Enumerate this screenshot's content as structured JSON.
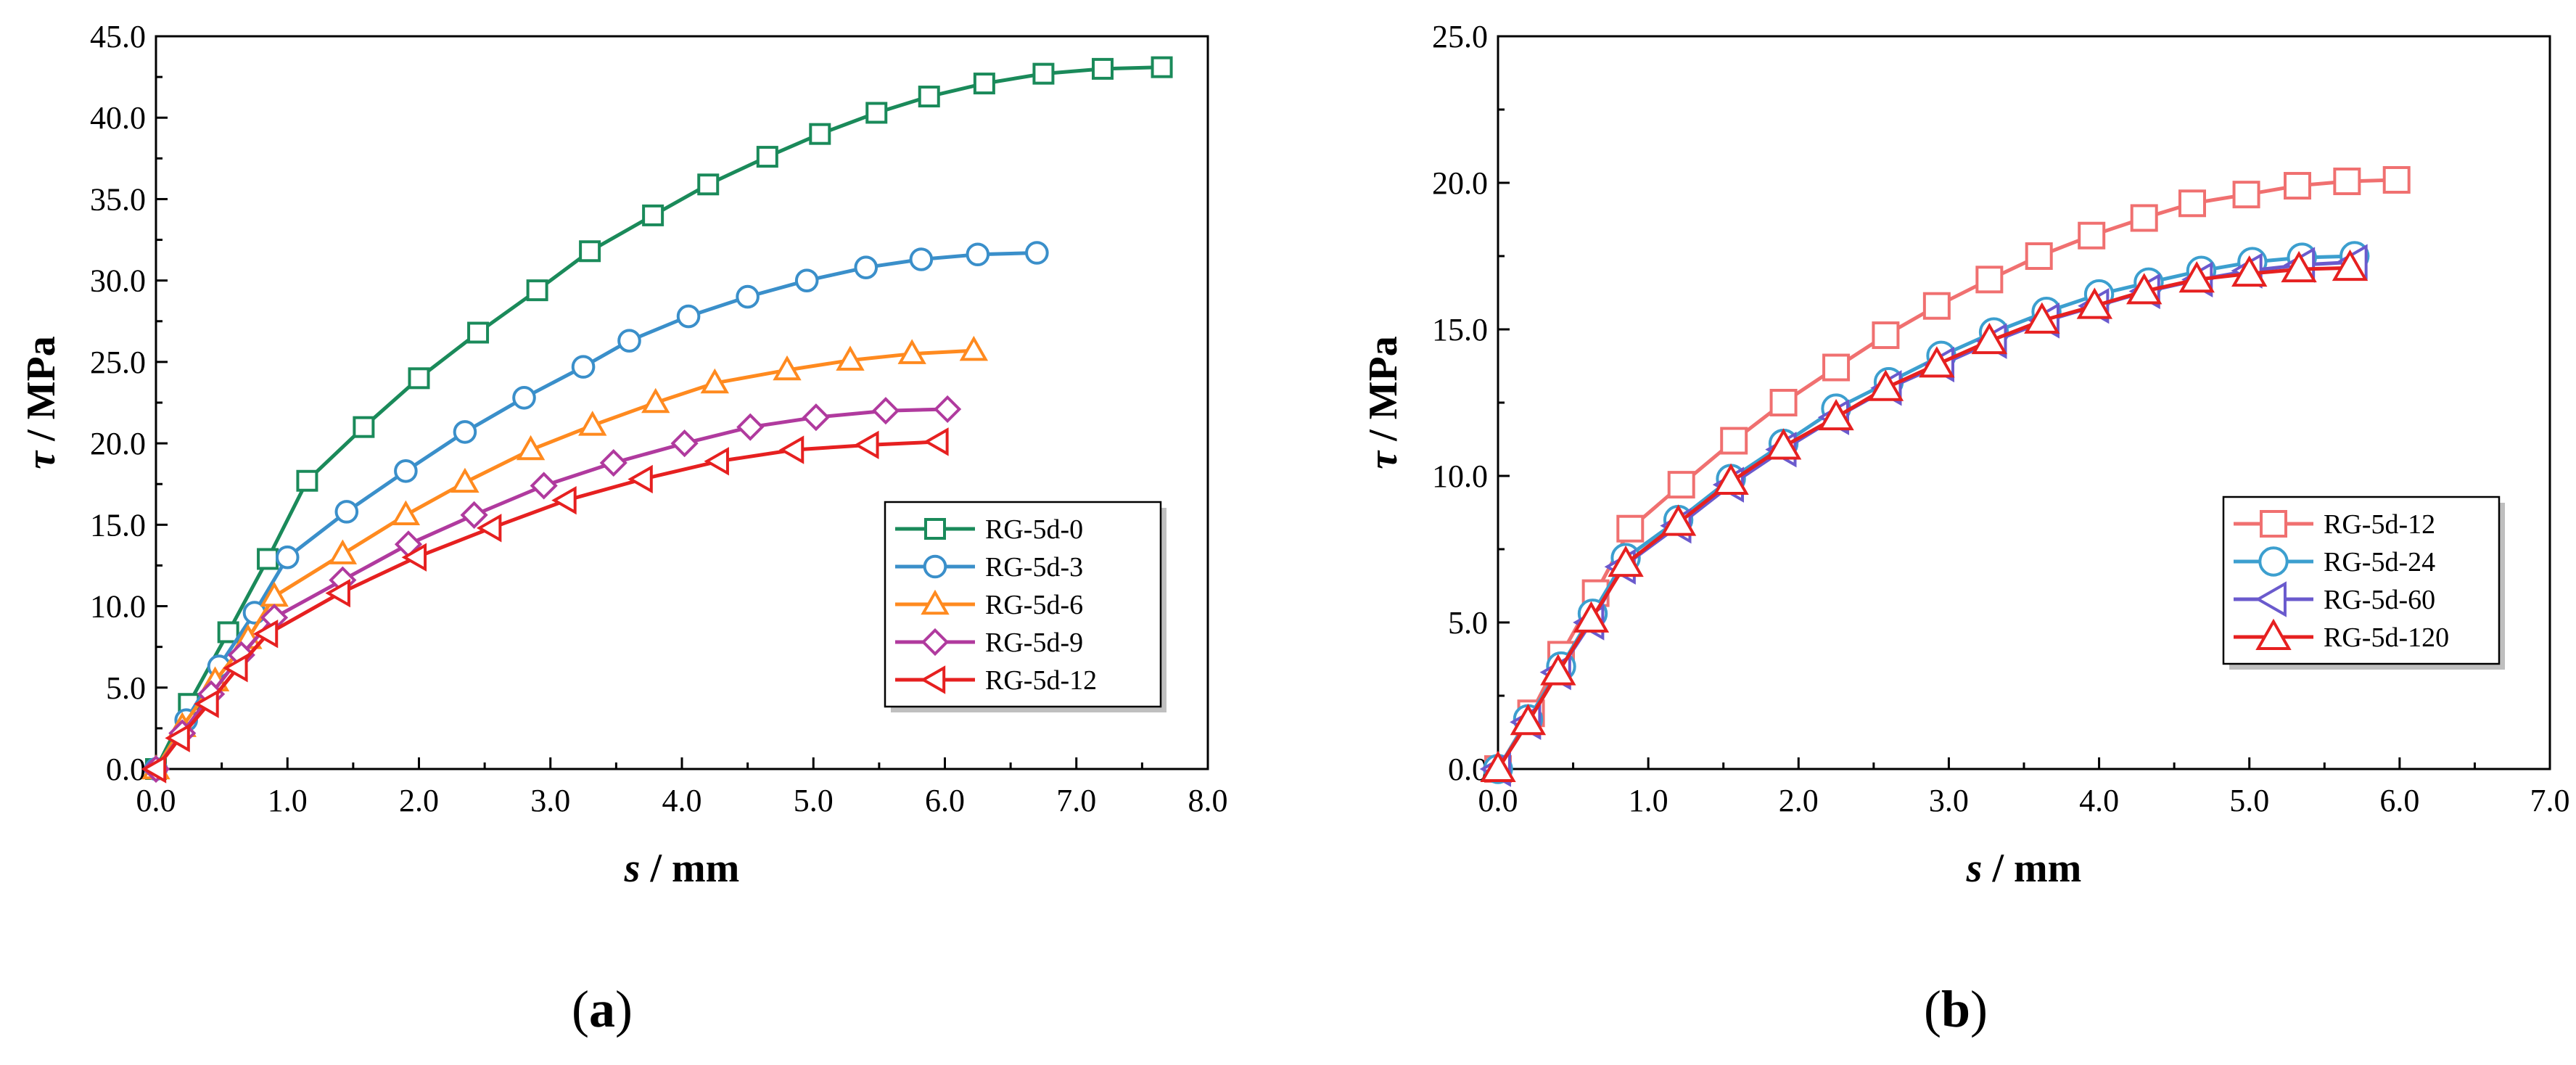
{
  "chart_data": [
    {
      "type": "line",
      "panel_label": "(a)",
      "xlabel": {
        "sym": "s",
        "unit": " / mm"
      },
      "ylabel": {
        "sym": "τ",
        "unit": " / MPa"
      },
      "xlim": [
        0,
        8
      ],
      "ylim": [
        0,
        45
      ],
      "xticks": [
        "0.0",
        "1.0",
        "2.0",
        "3.0",
        "4.0",
        "5.0",
        "6.0",
        "7.0",
        "8.0"
      ],
      "yticks": [
        "0.0",
        "5.0",
        "10.0",
        "15.0",
        "20.0",
        "25.0",
        "30.0",
        "35.0",
        "40.0",
        "45.0"
      ],
      "legend_position": "bottom-right",
      "series": [
        {
          "name": "RG-5d-0",
          "color": "#1a8a5a",
          "marker": "square",
          "x": [
            0,
            0.25,
            0.55,
            0.85,
            1.15,
            1.58,
            2.0,
            2.45,
            2.9,
            3.3,
            3.78,
            4.2,
            4.65,
            5.05,
            5.48,
            5.88,
            6.3,
            6.75,
            7.2,
            7.65
          ],
          "y": [
            0,
            4.0,
            8.4,
            12.9,
            17.7,
            21.0,
            24.0,
            26.8,
            29.4,
            31.8,
            34.0,
            35.9,
            37.6,
            39.0,
            40.3,
            41.3,
            42.1,
            42.7,
            43.0,
            43.1
          ]
        },
        {
          "name": "RG-5d-3",
          "color": "#3a8fca",
          "marker": "circle",
          "x": [
            0,
            0.23,
            0.48,
            0.75,
            1.0,
            1.45,
            1.9,
            2.35,
            2.8,
            3.25,
            3.6,
            4.05,
            4.5,
            4.95,
            5.4,
            5.82,
            6.25,
            6.7
          ],
          "y": [
            0,
            3.0,
            6.3,
            9.6,
            13.0,
            15.8,
            18.3,
            20.7,
            22.8,
            24.7,
            26.3,
            27.8,
            29.0,
            30.0,
            30.8,
            31.3,
            31.6,
            31.7
          ]
        },
        {
          "name": "RG-5d-6",
          "color": "#ff8a1f",
          "marker": "triangle-up",
          "x": [
            0,
            0.2,
            0.45,
            0.7,
            0.9,
            1.42,
            1.9,
            2.35,
            2.85,
            3.32,
            3.8,
            4.25,
            4.8,
            5.28,
            5.75,
            6.22
          ],
          "y": [
            0,
            2.6,
            5.4,
            8.0,
            10.6,
            13.2,
            15.6,
            17.6,
            19.6,
            21.1,
            22.5,
            23.7,
            24.5,
            25.1,
            25.5,
            25.7
          ]
        },
        {
          "name": "RG-5d-9",
          "color": "#b03a9e",
          "marker": "diamond",
          "x": [
            0,
            0.2,
            0.42,
            0.65,
            0.9,
            1.42,
            1.92,
            2.42,
            2.95,
            3.48,
            4.02,
            4.52,
            5.02,
            5.55,
            6.02
          ],
          "y": [
            0,
            2.2,
            4.6,
            7.0,
            9.3,
            11.6,
            13.8,
            15.6,
            17.4,
            18.8,
            20.0,
            21.0,
            21.6,
            22.0,
            22.1
          ]
        },
        {
          "name": "RG-5d-12",
          "color": "#e62020",
          "marker": "triangle-left",
          "x": [
            0,
            0.18,
            0.4,
            0.62,
            0.85,
            1.4,
            1.98,
            2.55,
            3.12,
            3.7,
            4.28,
            4.85,
            5.42,
            5.95
          ],
          "y": [
            0,
            1.9,
            4.0,
            6.2,
            8.3,
            10.8,
            13.0,
            14.8,
            16.5,
            17.8,
            18.9,
            19.6,
            19.9,
            20.1
          ]
        }
      ]
    },
    {
      "type": "line",
      "panel_label": "(b)",
      "xlabel": {
        "sym": "s",
        "unit": " / mm"
      },
      "ylabel": {
        "sym": "τ",
        "unit": " / MPa"
      },
      "xlim": [
        0,
        7
      ],
      "ylim": [
        0,
        25
      ],
      "xticks": [
        "0.0",
        "1.0",
        "2.0",
        "3.0",
        "4.0",
        "5.0",
        "6.0",
        "7.0"
      ],
      "yticks": [
        "0.0",
        "5.0",
        "10.0",
        "15.0",
        "20.0",
        "25.0"
      ],
      "legend_position": "bottom-right",
      "series": [
        {
          "name": "RG-5d-12",
          "color": "#f07070",
          "marker": "square",
          "x": [
            0,
            0.22,
            0.42,
            0.65,
            0.88,
            1.22,
            1.57,
            1.9,
            2.25,
            2.58,
            2.92,
            3.27,
            3.6,
            3.95,
            4.3,
            4.62,
            4.98,
            5.32,
            5.65,
            5.98
          ],
          "y": [
            0,
            1.9,
            3.9,
            6.0,
            8.2,
            9.7,
            11.2,
            12.5,
            13.7,
            14.8,
            15.8,
            16.7,
            17.5,
            18.2,
            18.8,
            19.3,
            19.6,
            19.9,
            20.05,
            20.1
          ]
        },
        {
          "name": "RG-5d-24",
          "color": "#3c9fcf",
          "marker": "circle",
          "x": [
            0,
            0.2,
            0.42,
            0.63,
            0.85,
            1.2,
            1.55,
            1.9,
            2.25,
            2.6,
            2.95,
            3.3,
            3.65,
            4.0,
            4.33,
            4.68,
            5.02,
            5.35,
            5.7
          ],
          "y": [
            0,
            1.7,
            3.5,
            5.3,
            7.2,
            8.5,
            9.9,
            11.1,
            12.3,
            13.2,
            14.1,
            14.9,
            15.6,
            16.2,
            16.6,
            17.0,
            17.3,
            17.45,
            17.5
          ]
        },
        {
          "name": "RG-5d-60",
          "color": "#6a5acd",
          "marker": "triangle-left",
          "x": [
            0,
            0.2,
            0.4,
            0.62,
            0.83,
            1.2,
            1.55,
            1.9,
            2.25,
            2.6,
            2.95,
            3.3,
            3.65,
            3.98,
            4.32,
            4.67,
            5.0,
            5.35,
            5.7
          ],
          "y": [
            0,
            1.6,
            3.3,
            5.0,
            6.9,
            8.3,
            9.7,
            10.9,
            12.0,
            13.0,
            13.8,
            14.6,
            15.3,
            15.8,
            16.3,
            16.7,
            17.0,
            17.2,
            17.3
          ]
        },
        {
          "name": "RG-5d-120",
          "color": "#e62020",
          "marker": "triangle-up",
          "x": [
            0,
            0.2,
            0.4,
            0.62,
            0.85,
            1.2,
            1.55,
            1.9,
            2.25,
            2.58,
            2.92,
            3.27,
            3.62,
            3.97,
            4.3,
            4.65,
            5.0,
            5.33,
            5.67
          ],
          "y": [
            0,
            1.6,
            3.3,
            5.1,
            7.0,
            8.4,
            9.8,
            11.0,
            12.0,
            13.0,
            13.8,
            14.6,
            15.3,
            15.8,
            16.3,
            16.7,
            16.9,
            17.05,
            17.1
          ]
        }
      ]
    }
  ]
}
